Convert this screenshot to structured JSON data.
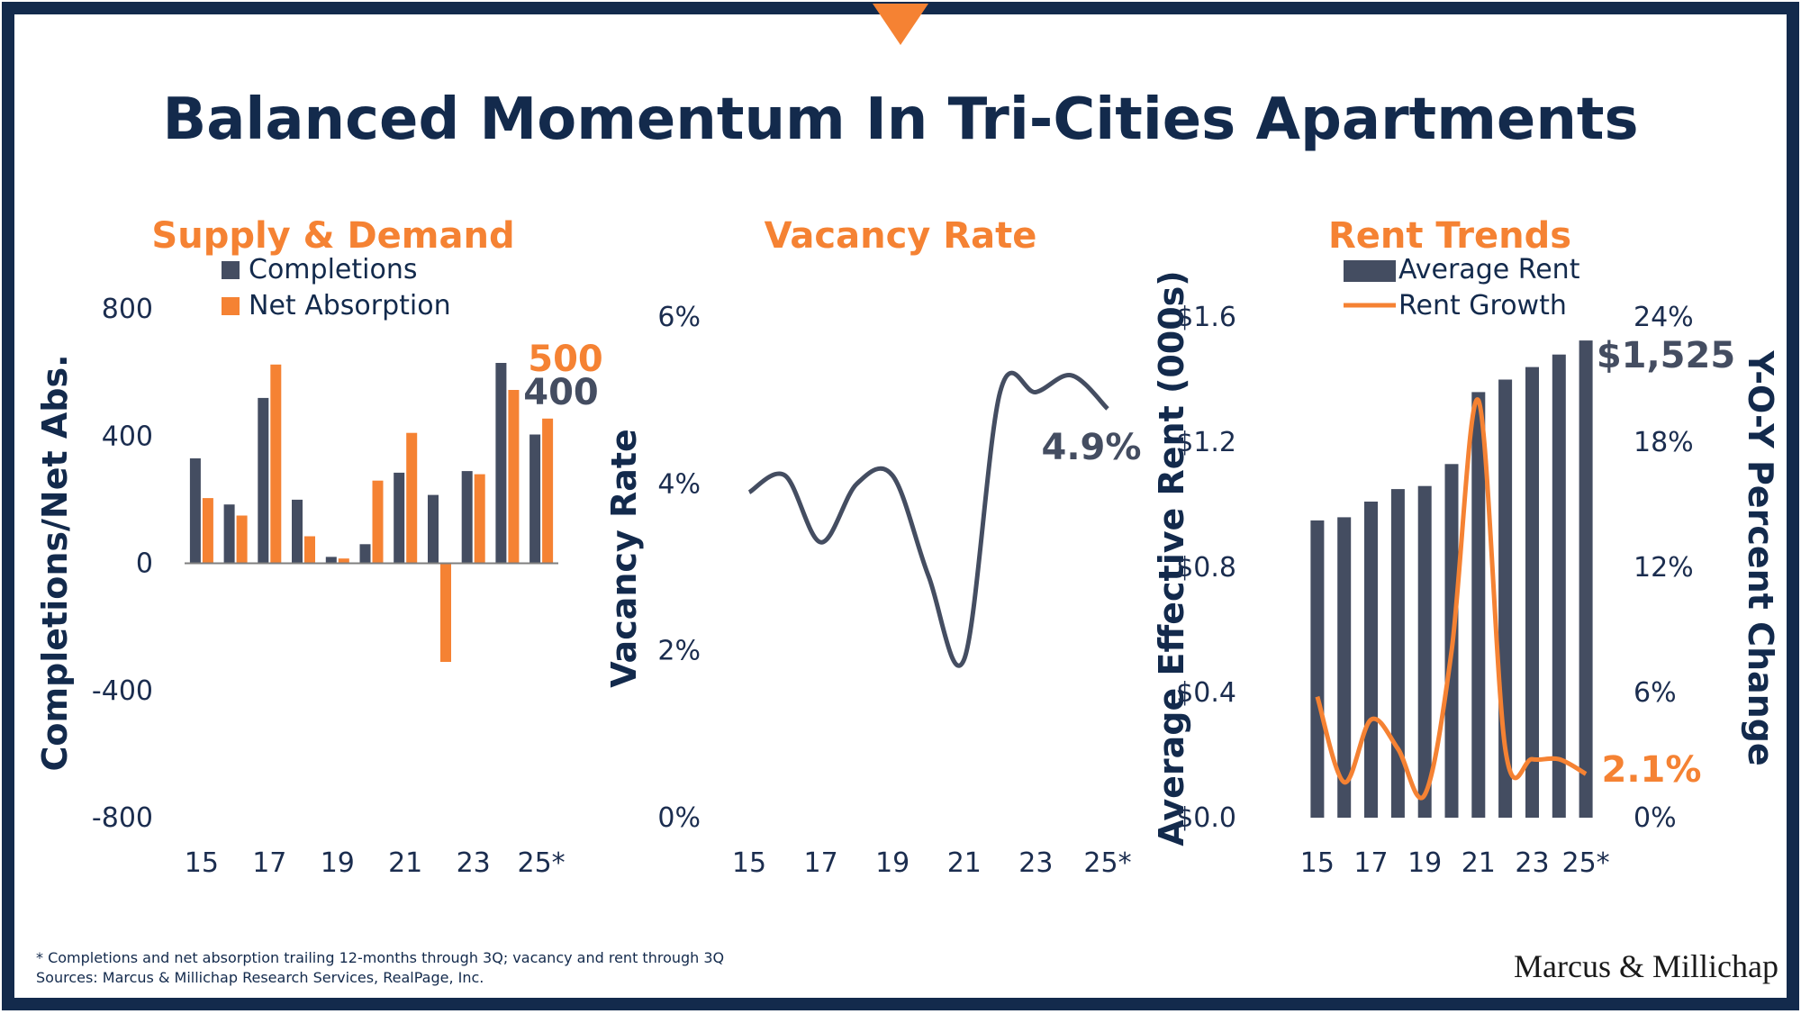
{
  "title": "Balanced Momentum In Tri-Cities Apartments",
  "colors": {
    "navy": "#132a4c",
    "slate": "#444d61",
    "orange": "#f58233",
    "tick": "#1b2d4f"
  },
  "footnote": {
    "line1": "* Completions and net absorption trailing 12-months through 3Q; vacancy and rent through 3Q",
    "line2": "Sources: Marcus & Millichap Research Services, RealPage, Inc."
  },
  "logo": {
    "text": "Marcus & Millichap"
  },
  "chart_data": [
    {
      "type": "bar",
      "title": "Supply & Demand",
      "ylabel": "Completions/Net Abs.",
      "ylim": [
        -800,
        800
      ],
      "yticks": [
        "800",
        "400",
        "0",
        "-400",
        "-800"
      ],
      "xticks": [
        "15",
        "17",
        "19",
        "21",
        "23",
        "25*"
      ],
      "categories": [
        "15",
        "16",
        "17",
        "18",
        "19",
        "20",
        "21",
        "22",
        "23",
        "24",
        "25*"
      ],
      "series": [
        {
          "name": "Completions",
          "color": "#444d61",
          "values": [
            330,
            185,
            520,
            200,
            20,
            60,
            285,
            215,
            290,
            630,
            405
          ]
        },
        {
          "name": "Net Absorption",
          "color": "#f58233",
          "values": [
            205,
            150,
            625,
            85,
            15,
            260,
            410,
            -310,
            280,
            545,
            455
          ]
        }
      ],
      "legend": "top",
      "annotations": [
        {
          "text": "500",
          "color": "#f58233"
        },
        {
          "text": "400",
          "color": "#444d61"
        }
      ]
    },
    {
      "type": "line",
      "title": "Vacancy Rate",
      "ylabel": "Vacancy Rate",
      "ylim": [
        0,
        6
      ],
      "yticks": [
        "6%",
        "4%",
        "2%",
        "0%"
      ],
      "xticks": [
        "15",
        "17",
        "19",
        "21",
        "23",
        "25*"
      ],
      "x": [
        "15",
        "16",
        "17",
        "18",
        "19",
        "20",
        "21",
        "22",
        "23",
        "24",
        "25*"
      ],
      "series": [
        {
          "name": "Vacancy Rate",
          "color": "#444d61",
          "values": [
            3.9,
            4.1,
            3.3,
            4.0,
            4.1,
            2.9,
            1.9,
            5.1,
            5.1,
            5.3,
            4.9
          ]
        }
      ],
      "annotations": [
        {
          "text": "4.9%",
          "color": "#444d61"
        }
      ]
    },
    {
      "type": "bar",
      "title": "Rent Trends",
      "ylabel": "Average Effective Rent (000s)",
      "y2label": "Y-O-Y Percent Change",
      "ylim": [
        0,
        1.6
      ],
      "y2lim": [
        0,
        24
      ],
      "yticks": [
        "$1.6",
        "$1.2",
        "$0.8",
        "$0.4",
        "$0.0"
      ],
      "y2ticks": [
        "24%",
        "18%",
        "12%",
        "6%",
        "0%"
      ],
      "xticks": [
        "15",
        "17",
        "19",
        "21",
        "23",
        "25*"
      ],
      "categories": [
        "15",
        "16",
        "17",
        "18",
        "19",
        "20",
        "21",
        "22",
        "23",
        "24",
        "25*"
      ],
      "series": [
        {
          "name": "Average Rent",
          "type": "bar",
          "color": "#444d61",
          "axis": "left",
          "values": [
            0.95,
            0.96,
            1.01,
            1.05,
            1.06,
            1.13,
            1.36,
            1.4,
            1.44,
            1.48,
            1.525
          ]
        },
        {
          "name": "Rent Growth",
          "type": "line",
          "color": "#f58233",
          "axis": "right",
          "values": [
            5.8,
            1.7,
            4.7,
            3.3,
            1.1,
            8.0,
            20.0,
            3.3,
            2.8,
            2.8,
            2.1
          ]
        }
      ],
      "legend": "top",
      "annotations": [
        {
          "text": "$1,525",
          "color": "#444d61"
        },
        {
          "text": "2.1%",
          "color": "#f58233"
        }
      ]
    }
  ]
}
